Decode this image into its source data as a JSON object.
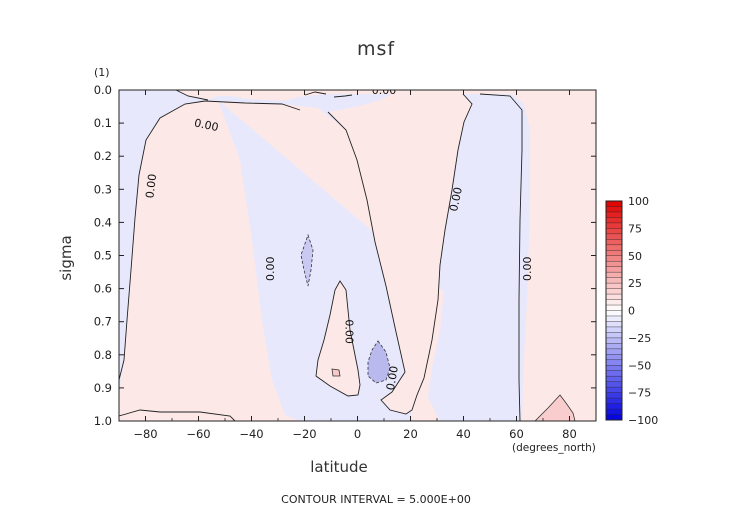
{
  "chart_data": {
    "type": "contour",
    "title": "msf",
    "xlabel": "latitude",
    "ylabel": "sigma",
    "x_units": "(degrees_north)",
    "y_units": "(1)",
    "footer": "CONTOUR INTERVAL = 5.000E+00",
    "xlim": [
      -90,
      90
    ],
    "ylim": [
      1.0,
      0.0
    ],
    "x_ticks": [
      -80,
      -60,
      -40,
      -20,
      0,
      20,
      40,
      60,
      80
    ],
    "y_ticks": [
      "0.0",
      "0.1",
      "0.2",
      "0.3",
      "0.4",
      "0.5",
      "0.6",
      "0.7",
      "0.8",
      "0.9",
      "1.0"
    ],
    "contour_labels": [
      {
        "text": "0.00",
        "lat": -78,
        "sigma": 0.29,
        "angle": -83
      },
      {
        "text": "0.00",
        "lat": -57,
        "sigma": 0.105,
        "angle": 12
      },
      {
        "text": "0.00",
        "lat": -33,
        "sigma": 0.54,
        "angle": -90
      },
      {
        "text": "0.00",
        "lat": -3,
        "sigma": 0.73,
        "angle": 90
      },
      {
        "text": "0.00",
        "lat": 13,
        "sigma": 0.87,
        "angle": -80
      },
      {
        "text": "0.00",
        "lat": 10,
        "sigma": 0.0,
        "angle": 0
      },
      {
        "text": "0.00",
        "lat": 37,
        "sigma": 0.33,
        "angle": -78
      },
      {
        "text": "0.00",
        "lat": 64,
        "sigma": 0.54,
        "angle": -90
      }
    ],
    "colorbar": {
      "levels": [
        100,
        75,
        50,
        25,
        0,
        -25,
        -50,
        -75,
        -100
      ],
      "max_color": "#e00000",
      "min_color": "#0000e0",
      "mid_color": "#ffffff"
    },
    "colors": {
      "positive": "#fde8e8",
      "negative": "#e8e8fc"
    }
  }
}
